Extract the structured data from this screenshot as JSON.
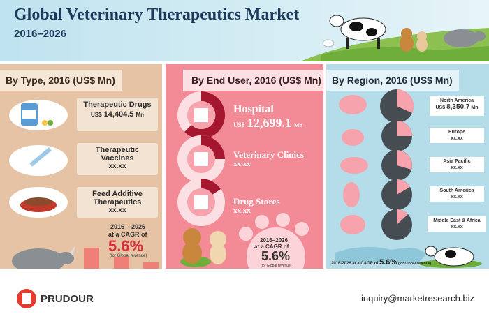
{
  "header": {
    "title": "Global Veterinary Therapeutics Market",
    "years": "2016–2026"
  },
  "by_type": {
    "heading": "By Type, 2016 (US$ Mn)",
    "items": [
      {
        "label": "Therapeutic Drugs",
        "unit": "US$",
        "amount": "14,404.5",
        "suffix": "Mn"
      },
      {
        "label": "Therapeutic Vaccines",
        "amount": "xx.xx"
      },
      {
        "label": "Feed Additive Therapeutics",
        "amount": "xx.xx"
      }
    ],
    "cagr": {
      "period": "2016 – 2026",
      "text": "at a CAGR of",
      "rate": "5.6%",
      "note": "(for Global revenue)"
    }
  },
  "by_end_user": {
    "heading": "By End User, 2016 (US$ Mn)",
    "items": [
      {
        "label": "Hospital",
        "unit": "US$",
        "amount": "12,699.1",
        "suffix": "Mn"
      },
      {
        "label": "Veterinary Clinics",
        "amount": "xx.xx"
      },
      {
        "label": "Drug Stores",
        "amount": "xx.xx"
      }
    ],
    "cagr": {
      "period": "2016–2026",
      "text": "at a CAGR of",
      "rate": "5.6%",
      "note": "(for Global revenue)"
    }
  },
  "by_region": {
    "heading": "By Region, 2016 (US$ Mn)",
    "items": [
      {
        "label": "North America",
        "unit": "US$",
        "amount": "8,350.7",
        "suffix": "Mn"
      },
      {
        "label": "Europe",
        "amount": "xx.xx"
      },
      {
        "label": "Asia Pacific",
        "amount": "xx.xx"
      },
      {
        "label": "South America",
        "amount": "xx.xx"
      },
      {
        "label": "Middle East & Africa",
        "amount": "xx.xx"
      }
    ],
    "cagr": {
      "period": "2016-2026",
      "text": "at a CAGR of",
      "rate": "5.6%",
      "note": "(for Global revenue)"
    }
  },
  "footer": {
    "brand": "PRUDOUR",
    "email": "inquiry@marketresearch.biz"
  }
}
